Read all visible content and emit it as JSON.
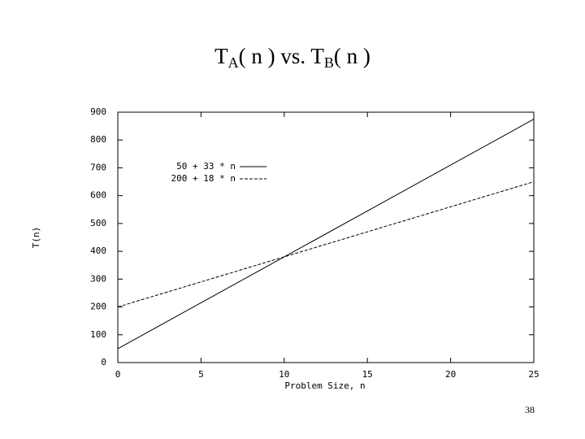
{
  "chart_data": {
    "type": "line",
    "title": [
      {
        "text": "T"
      },
      {
        "text": "A",
        "sub": true
      },
      {
        "text": "( n ) vs. T"
      },
      {
        "text": "B",
        "sub": true
      },
      {
        "text": "( n )"
      }
    ],
    "x_label": "Problem Size, n",
    "y_label": "T(n)",
    "x": [
      0,
      25
    ],
    "series": [
      {
        "name": "50 + 33 * n",
        "color": "#000000",
        "line_style": "solid",
        "values": [
          50,
          875
        ]
      },
      {
        "name": "200 + 18 * n",
        "color": "#000000",
        "line_style": "dashed",
        "values": [
          200,
          650
        ]
      }
    ],
    "xlim": [
      0,
      25
    ],
    "xticks": [
      0,
      5,
      10,
      15,
      20,
      25
    ],
    "ylim": [
      0,
      900
    ],
    "yticks": [
      0,
      100,
      200,
      300,
      400,
      500,
      600,
      700,
      800,
      900
    ],
    "grid": false,
    "legend": "upper-left"
  },
  "page_number": "38"
}
